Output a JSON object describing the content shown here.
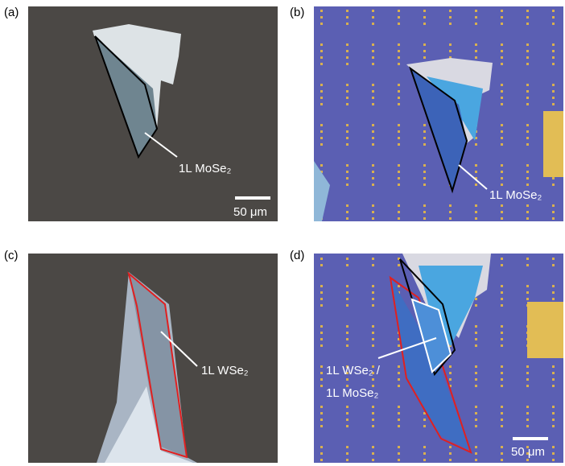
{
  "panels": [
    {
      "label": "(a)",
      "annotations": [
        "1L MoSe₂"
      ],
      "scale_bar": "50 μm"
    },
    {
      "label": "(b)",
      "annotations": [
        "1L MoSe₂"
      ]
    },
    {
      "label": "(c)",
      "annotations": [
        "1L WSe₂"
      ]
    },
    {
      "label": "(d)",
      "annotations": [
        "1L WSe₂ /",
        "1L MoSe₂"
      ],
      "scale_bar": "50 μm"
    }
  ]
}
